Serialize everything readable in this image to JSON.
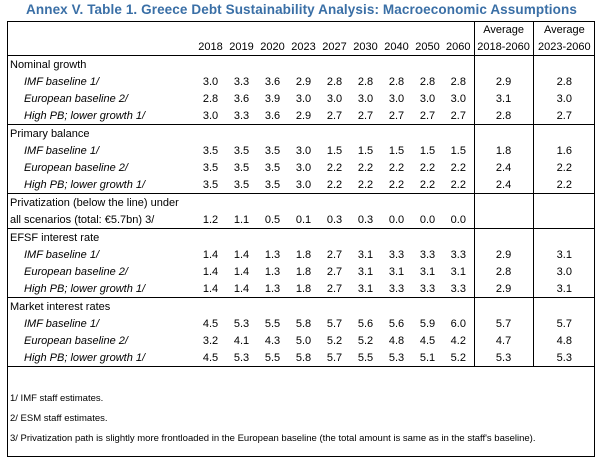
{
  "title": "Annex V. Table 1. Greece Debt Sustainability Analysis: Macroeconomic Assumptions",
  "header": {
    "years": [
      "2018",
      "2019",
      "2020",
      "2023",
      "2027",
      "2030",
      "2040",
      "2050",
      "2060"
    ],
    "avg1_top": "Average",
    "avg1_bottom": "2018-2060",
    "avg2_top": "Average",
    "avg2_bottom": "2023-2060"
  },
  "sections": [
    {
      "label": "Nominal growth",
      "rows": [
        {
          "label": "IMF baseline 1/",
          "values": [
            "3.0",
            "3.3",
            "3.6",
            "2.9",
            "2.8",
            "2.8",
            "2.8",
            "2.8",
            "2.8"
          ],
          "avg1": "2.9",
          "avg2": "2.8"
        },
        {
          "label": "European baseline 2/",
          "values": [
            "2.8",
            "3.6",
            "3.9",
            "3.0",
            "3.0",
            "3.0",
            "3.0",
            "3.0",
            "3.0"
          ],
          "avg1": "3.1",
          "avg2": "3.0"
        },
        {
          "label": "High PB; lower growth 1/",
          "values": [
            "3.0",
            "3.3",
            "3.6",
            "2.9",
            "2.7",
            "2.7",
            "2.7",
            "2.7",
            "2.7"
          ],
          "avg1": "2.8",
          "avg2": "2.7"
        }
      ]
    },
    {
      "label": "Primary balance",
      "rows": [
        {
          "label": "IMF baseline 1/",
          "values": [
            "3.5",
            "3.5",
            "3.5",
            "3.0",
            "1.5",
            "1.5",
            "1.5",
            "1.5",
            "1.5"
          ],
          "avg1": "1.8",
          "avg2": "1.6"
        },
        {
          "label": "European baseline 2/",
          "values": [
            "3.5",
            "3.5",
            "3.5",
            "3.0",
            "2.2",
            "2.2",
            "2.2",
            "2.2",
            "2.2"
          ],
          "avg1": "2.4",
          "avg2": "2.2"
        },
        {
          "label": "High PB; lower growth 1/",
          "values": [
            "3.5",
            "3.5",
            "3.5",
            "3.0",
            "2.2",
            "2.2",
            "2.2",
            "2.2",
            "2.2"
          ],
          "avg1": "2.4",
          "avg2": "2.2"
        }
      ]
    },
    {
      "label_line1": "Privatization (below the line) under",
      "label_line2": "all scenarios (total: €5.7bn) 3/",
      "values": [
        "1.2",
        "1.1",
        "0.5",
        "0.1",
        "0.3",
        "0.3",
        "0.0",
        "0.0",
        "0.0"
      ],
      "avg1": "",
      "avg2": ""
    },
    {
      "label": "EFSF interest rate",
      "rows": [
        {
          "label": "IMF baseline 1/",
          "values": [
            "1.4",
            "1.4",
            "1.3",
            "1.8",
            "2.7",
            "3.1",
            "3.3",
            "3.3",
            "3.3"
          ],
          "avg1": "2.9",
          "avg2": "3.1"
        },
        {
          "label": "European baseline 2/",
          "values": [
            "1.4",
            "1.4",
            "1.3",
            "1.8",
            "2.7",
            "3.1",
            "3.1",
            "3.1",
            "3.1"
          ],
          "avg1": "2.8",
          "avg2": "3.0"
        },
        {
          "label": "High PB; lower growth 1/",
          "values": [
            "1.4",
            "1.4",
            "1.3",
            "1.8",
            "2.7",
            "3.1",
            "3.3",
            "3.3",
            "3.3"
          ],
          "avg1": "2.9",
          "avg2": "3.1"
        }
      ]
    },
    {
      "label": "Market interest rates",
      "rows": [
        {
          "label": "IMF baseline 1/",
          "values": [
            "4.5",
            "5.3",
            "5.5",
            "5.8",
            "5.7",
            "5.6",
            "5.6",
            "5.9",
            "6.0"
          ],
          "avg1": "5.7",
          "avg2": "5.7"
        },
        {
          "label": "European baseline 2/",
          "values": [
            "3.2",
            "4.1",
            "4.3",
            "5.0",
            "5.2",
            "5.2",
            "4.8",
            "4.5",
            "4.2"
          ],
          "avg1": "4.7",
          "avg2": "4.8"
        },
        {
          "label": "High PB; lower growth 1/",
          "values": [
            "4.5",
            "5.3",
            "5.5",
            "5.8",
            "5.7",
            "5.5",
            "5.3",
            "5.1",
            "5.2"
          ],
          "avg1": "5.3",
          "avg2": "5.3"
        }
      ]
    }
  ],
  "footnotes": [
    "1/ IMF staff estimates.",
    "2/ ESM staff estimates.",
    "3/ Privatization path is slightly more frontloaded in the European baseline (the total amount is same as in the staff's baseline)."
  ]
}
